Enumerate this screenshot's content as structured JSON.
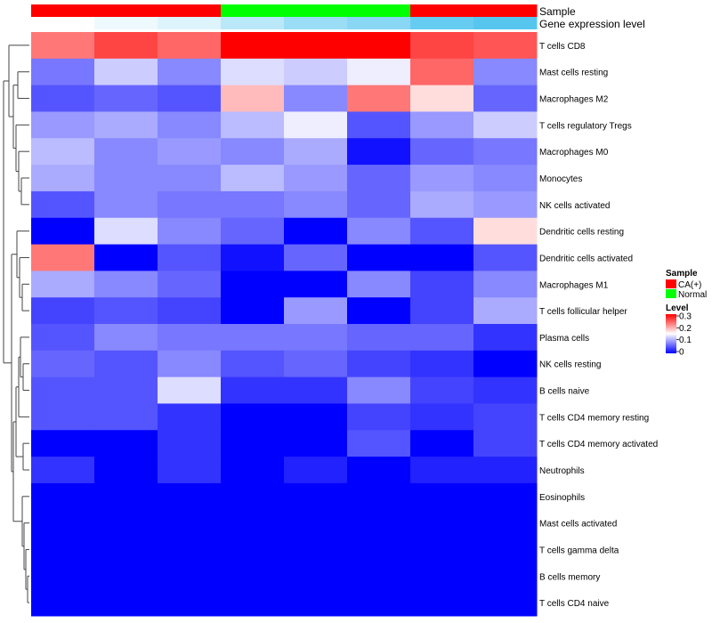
{
  "chart_data": {
    "type": "heatmap",
    "annotation_labels": {
      "sample": "Sample",
      "gene_expression": "Gene expression level"
    },
    "sample_groups": [
      "CA(+)",
      "CA(+)",
      "CA(+)",
      "Normal",
      "Normal",
      "Normal",
      "CA(+)",
      "CA(+)"
    ],
    "gene_expression_levels": [
      0.0,
      0.05,
      0.1,
      0.2,
      0.3,
      0.35,
      0.45,
      0.5
    ],
    "rows": [
      "T cells CD8",
      "Mast cells resting",
      "Macrophages M2",
      "T cells regulatory  Tregs",
      "Macrophages M0",
      "Monocytes",
      "NK cells activated",
      "Dendritic cells resting",
      "Dendritic cells activated",
      "Macrophages M1",
      "T cells follicular helper",
      "Plasma cells",
      "NK cells resting",
      "B cells naive",
      "T cells CD4 memory resting",
      "T cells CD4 memory activated",
      "Neutrophils",
      "Eosinophils",
      "Mast cells activated",
      "T cells gamma delta",
      "B cells memory",
      "T cells CD4 naive"
    ],
    "values": [
      [
        0.23,
        0.26,
        0.24,
        0.3,
        0.3,
        0.3,
        0.26,
        0.25
      ],
      [
        0.07,
        0.12,
        0.08,
        0.13,
        0.12,
        0.14,
        0.24,
        0.08
      ],
      [
        0.05,
        0.06,
        0.05,
        0.19,
        0.08,
        0.23,
        0.17,
        0.06
      ],
      [
        0.09,
        0.1,
        0.08,
        0.11,
        0.14,
        0.05,
        0.09,
        0.12
      ],
      [
        0.11,
        0.08,
        0.09,
        0.08,
        0.1,
        0.01,
        0.06,
        0.07
      ],
      [
        0.1,
        0.08,
        0.08,
        0.11,
        0.09,
        0.06,
        0.09,
        0.08
      ],
      [
        0.05,
        0.08,
        0.07,
        0.07,
        0.08,
        0.06,
        0.1,
        0.09
      ],
      [
        0.0,
        0.13,
        0.08,
        0.06,
        0.0,
        0.08,
        0.05,
        0.17
      ],
      [
        0.23,
        0.0,
        0.05,
        0.01,
        0.06,
        0.0,
        0.0,
        0.05
      ],
      [
        0.1,
        0.08,
        0.06,
        0.0,
        0.0,
        0.08,
        0.04,
        0.08
      ],
      [
        0.04,
        0.05,
        0.04,
        0.0,
        0.09,
        0.0,
        0.04,
        0.1
      ],
      [
        0.05,
        0.08,
        0.07,
        0.07,
        0.07,
        0.06,
        0.06,
        0.03
      ],
      [
        0.06,
        0.05,
        0.08,
        0.05,
        0.06,
        0.04,
        0.03,
        0.0
      ],
      [
        0.05,
        0.05,
        0.13,
        0.03,
        0.03,
        0.08,
        0.04,
        0.03
      ],
      [
        0.05,
        0.05,
        0.03,
        0.0,
        0.0,
        0.04,
        0.03,
        0.04
      ],
      [
        0.0,
        0.0,
        0.03,
        0.0,
        0.0,
        0.05,
        0.0,
        0.04
      ],
      [
        0.03,
        0.0,
        0.03,
        0.0,
        0.02,
        0.0,
        0.02,
        0.02
      ],
      [
        0.0,
        0.0,
        0.0,
        0.0,
        0.0,
        0.0,
        0.0,
        0.0
      ],
      [
        0.0,
        0.0,
        0.0,
        0.0,
        0.0,
        0.0,
        0.0,
        0.0
      ],
      [
        0.0,
        0.0,
        0.0,
        0.0,
        0.0,
        0.0,
        0.0,
        0.0
      ],
      [
        0.0,
        0.0,
        0.0,
        0.0,
        0.0,
        0.0,
        0.0,
        0.0
      ],
      [
        0.0,
        0.0,
        0.0,
        0.0,
        0.0,
        0.0,
        0.0,
        0.0
      ]
    ],
    "color_range": [
      0,
      0.3
    ],
    "legend": {
      "sample_title": "Sample",
      "sample_entries": [
        {
          "label": "CA(+)",
          "color": "#ff0000"
        },
        {
          "label": "Normal",
          "color": "#00ff00"
        }
      ],
      "level_title": "Level",
      "level_ticks": [
        "0.3",
        "0.2",
        "0.1",
        "0"
      ],
      "level_values": [
        0.3,
        0.2,
        0.1,
        0
      ]
    },
    "colors": {
      "low": "#0000ff",
      "mid": "#ffffff",
      "high": "#ff0000",
      "expr_low": "#ffffff",
      "expr_high": "#56c6ef"
    }
  }
}
